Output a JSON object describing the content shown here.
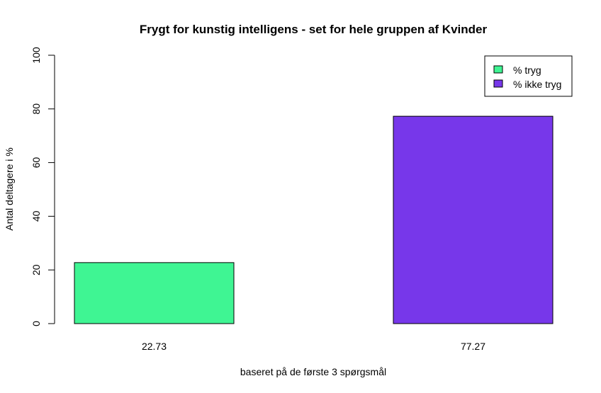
{
  "chart_data": {
    "type": "bar",
    "title": "Frygt for kunstig intelligens - set for hele gruppen af Kvinder",
    "xlabel": "baseret på de første 3 spørgsmål",
    "ylabel": "Antal deltagere i %",
    "ylim": [
      0,
      100
    ],
    "yticks": [
      0,
      20,
      40,
      60,
      80,
      100
    ],
    "categories": [
      "22.73",
      "77.27"
    ],
    "values": [
      22.73,
      77.27
    ],
    "colors": [
      "#3ff593",
      "#7737ea"
    ],
    "legend": {
      "position": "top-right",
      "entries": [
        {
          "label": "% tryg",
          "color": "#3ff593"
        },
        {
          "label": "% ikke tryg",
          "color": "#7737ea"
        }
      ]
    }
  }
}
